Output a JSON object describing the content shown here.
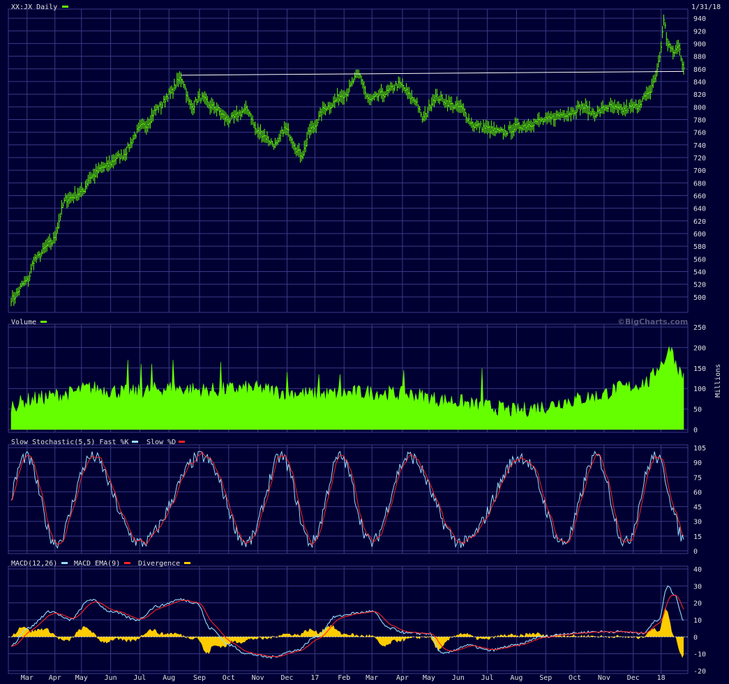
{
  "colors": {
    "background": "#000033",
    "grid": "#3a3a88",
    "price": "#66ff00",
    "volume": "#66ff00",
    "fast_k": "#99ddff",
    "slow_d": "#ff2222",
    "macd": "#99ddff",
    "macd_ema": "#ff2222",
    "divergence": "#ffcc00",
    "trendline": "#ffffff",
    "text": "#e0e0e0"
  },
  "header": {
    "title": "XX:JX Daily",
    "date": "1/31/18",
    "watermark": "©BigCharts.com"
  },
  "x_axis": {
    "labels": [
      "Mar",
      "Apr",
      "May",
      "Jun",
      "Jul",
      "Aug",
      "Sep",
      "Oct",
      "Nov",
      "Dec",
      "17",
      "Feb",
      "Mar",
      "Apr",
      "May",
      "Jun",
      "Jul",
      "Aug",
      "Sep",
      "Oct",
      "Nov",
      "Dec",
      "18"
    ],
    "day_index": [
      12,
      33,
      53,
      75,
      97,
      119,
      142,
      164,
      186,
      208,
      229,
      251,
      272,
      295,
      315,
      337,
      359,
      381,
      403,
      425,
      447,
      469,
      490
    ]
  },
  "chart_data": [
    {
      "type": "line",
      "title": "XX:JX Daily",
      "series": [
        {
          "name": "XX:JX Daily",
          "values": []
        }
      ],
      "ylim": [
        480,
        950
      ],
      "yticks": [
        500,
        520,
        540,
        560,
        580,
        600,
        620,
        640,
        660,
        680,
        700,
        720,
        740,
        760,
        780,
        800,
        820,
        840,
        860,
        880,
        900,
        920,
        940
      ],
      "anchors": [
        [
          0,
          497
        ],
        [
          12,
          525
        ],
        [
          18,
          560
        ],
        [
          30,
          585
        ],
        [
          42,
          655
        ],
        [
          53,
          665
        ],
        [
          60,
          690
        ],
        [
          70,
          705
        ],
        [
          82,
          722
        ],
        [
          100,
          770
        ],
        [
          112,
          800
        ],
        [
          119,
          820
        ],
        [
          128,
          845
        ],
        [
          136,
          800
        ],
        [
          142,
          815
        ],
        [
          152,
          800
        ],
        [
          164,
          780
        ],
        [
          178,
          795
        ],
        [
          186,
          760
        ],
        [
          200,
          740
        ],
        [
          206,
          765
        ],
        [
          219,
          725
        ],
        [
          226,
          765
        ],
        [
          238,
          800
        ],
        [
          251,
          820
        ],
        [
          262,
          850
        ],
        [
          270,
          810
        ],
        [
          280,
          820
        ],
        [
          292,
          835
        ],
        [
          305,
          810
        ],
        [
          310,
          782
        ],
        [
          320,
          815
        ],
        [
          337,
          800
        ],
        [
          350,
          770
        ],
        [
          370,
          760
        ],
        [
          385,
          770
        ],
        [
          400,
          778
        ],
        [
          420,
          790
        ],
        [
          430,
          800
        ],
        [
          440,
          790
        ],
        [
          450,
          800
        ],
        [
          460,
          795
        ],
        [
          470,
          800
        ],
        [
          480,
          818
        ],
        [
          486,
          848
        ],
        [
          489,
          880
        ],
        [
          492,
          935
        ],
        [
          495,
          900
        ],
        [
          499,
          885
        ],
        [
          503,
          895
        ],
        [
          507,
          865
        ]
      ],
      "trendline": [
        [
          128,
          850
        ],
        [
          507,
          856
        ]
      ],
      "grid": true
    },
    {
      "type": "area",
      "title": "Volume",
      "ylabel": "Millions",
      "series": [
        {
          "name": "Volume",
          "values": []
        }
      ],
      "ylim": [
        0,
        250
      ],
      "yticks": [
        0,
        50,
        100,
        150,
        200,
        250
      ],
      "anchors": [
        [
          0,
          60
        ],
        [
          20,
          75
        ],
        [
          40,
          85
        ],
        [
          60,
          100
        ],
        [
          90,
          90
        ],
        [
          119,
          100
        ],
        [
          150,
          95
        ],
        [
          180,
          100
        ],
        [
          210,
          90
        ],
        [
          230,
          85
        ],
        [
          270,
          90
        ],
        [
          300,
          85
        ],
        [
          330,
          70
        ],
        [
          360,
          55
        ],
        [
          380,
          45
        ],
        [
          400,
          55
        ],
        [
          420,
          70
        ],
        [
          440,
          80
        ],
        [
          460,
          100
        ],
        [
          480,
          115
        ],
        [
          490,
          160
        ],
        [
          496,
          190
        ],
        [
          507,
          130
        ]
      ],
      "spikes": [
        [
          88,
          170
        ],
        [
          98,
          160
        ],
        [
          106,
          160
        ],
        [
          122,
          170
        ],
        [
          158,
          165
        ],
        [
          208,
          140
        ],
        [
          232,
          135
        ],
        [
          248,
          135
        ],
        [
          296,
          145
        ],
        [
          355,
          150
        ],
        [
          498,
          200
        ]
      ],
      "grid": true
    },
    {
      "type": "line",
      "title": "Slow Stochastic(5,5)",
      "series": [
        {
          "name": "Fast %K",
          "values": []
        },
        {
          "name": "Slow %D",
          "values": []
        }
      ],
      "ylim": [
        0,
        105
      ],
      "yticks": [
        0,
        15,
        30,
        45,
        60,
        75,
        90,
        105
      ],
      "grid": true
    },
    {
      "type": "line",
      "title": "MACD(12,26)",
      "series": [
        {
          "name": "MACD EMA(9)",
          "values": []
        },
        {
          "name": "Divergence",
          "values": []
        }
      ],
      "ylim": [
        -20,
        40
      ],
      "yticks": [
        -20,
        -10,
        0,
        10,
        20,
        30,
        40
      ],
      "anchors": [
        [
          0,
          -5
        ],
        [
          12,
          5
        ],
        [
          30,
          15
        ],
        [
          44,
          10
        ],
        [
          60,
          22
        ],
        [
          75,
          15
        ],
        [
          95,
          10
        ],
        [
          110,
          18
        ],
        [
          128,
          22
        ],
        [
          140,
          20
        ],
        [
          150,
          5
        ],
        [
          165,
          -5
        ],
        [
          178,
          -10
        ],
        [
          195,
          -12
        ],
        [
          215,
          -8
        ],
        [
          230,
          0
        ],
        [
          245,
          12
        ],
        [
          260,
          14
        ],
        [
          272,
          15
        ],
        [
          285,
          5
        ],
        [
          300,
          2
        ],
        [
          315,
          2
        ],
        [
          325,
          -10
        ],
        [
          345,
          -5
        ],
        [
          360,
          -8
        ],
        [
          380,
          -5
        ],
        [
          400,
          0
        ],
        [
          420,
          2
        ],
        [
          440,
          3
        ],
        [
          460,
          3
        ],
        [
          475,
          2
        ],
        [
          488,
          10
        ],
        [
          495,
          30
        ],
        [
          500,
          25
        ],
        [
          507,
          10
        ]
      ],
      "grid": true
    }
  ],
  "panels": [
    {
      "legend": [
        {
          "text": "XX:JX Daily",
          "color_key": "price"
        }
      ]
    },
    {
      "legend": [
        {
          "text": "Volume",
          "color_key": "volume"
        }
      ],
      "unit": "Millions"
    },
    {
      "legend": [
        {
          "text": "Slow Stochastic(5,5) Fast %K",
          "color_key": "fast_k"
        },
        {
          "text": "Slow %D",
          "color_key": "slow_d"
        }
      ]
    },
    {
      "legend": [
        {
          "text": "MACD(12,26)",
          "color_key": "macd"
        },
        {
          "text": "MACD EMA(9)",
          "color_key": "macd_ema"
        },
        {
          "text": "Divergence",
          "color_key": "divergence"
        }
      ]
    }
  ],
  "n_days": 508
}
